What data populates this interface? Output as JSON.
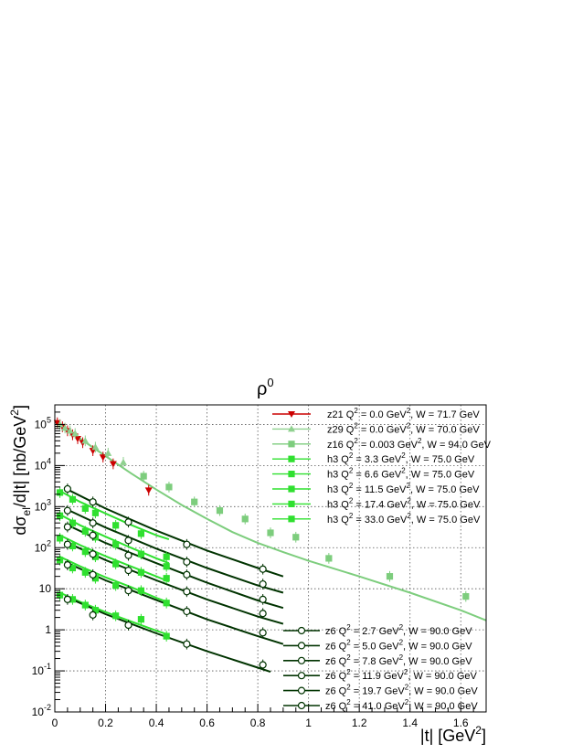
{
  "chart_data": {
    "type": "scatter",
    "title": "ρ0",
    "title_base": "ρ",
    "title_sup": "0",
    "xlabel": "|t| [GeV2]",
    "xlabel_parts": {
      "pre": "|t| [GeV",
      "sup": "2",
      "post": "]"
    },
    "ylabel": "dσel/d|t| [nb/GeV2]",
    "ylabel_parts": {
      "a": "dσ",
      "sub": "el",
      "b": "/d|t|  [nb/GeV",
      "sup": "2",
      "c": "]"
    },
    "xlim": [
      0,
      1.7
    ],
    "ylim": [
      0.01,
      300000
    ],
    "yscale": "log",
    "grid": true,
    "x_ticks": [
      {
        "v": 0,
        "label": "0"
      },
      {
        "v": 0.2,
        "label": "0.2"
      },
      {
        "v": 0.4,
        "label": "0.4"
      },
      {
        "v": 0.6,
        "label": "0.6"
      },
      {
        "v": 0.8,
        "label": "0.8"
      },
      {
        "v": 1,
        "label": "1"
      },
      {
        "v": 1.2,
        "label": "1.2"
      },
      {
        "v": 1.4,
        "label": "1.4"
      },
      {
        "v": 1.6,
        "label": "1.6"
      }
    ],
    "y_ticks": [
      {
        "v": 0.01,
        "base": "10",
        "exp": "-2"
      },
      {
        "v": 0.1,
        "base": "10",
        "exp": "-1"
      },
      {
        "v": 1,
        "base": "1",
        "exp": ""
      },
      {
        "v": 10,
        "base": "10",
        "exp": ""
      },
      {
        "v": 100,
        "base": "10",
        "exp": "2"
      },
      {
        "v": 1000,
        "base": "10",
        "exp": "3"
      },
      {
        "v": 10000,
        "base": "10",
        "exp": "4"
      },
      {
        "v": 100000,
        "base": "10",
        "exp": "5"
      }
    ],
    "series": [
      {
        "name": "z21 Q2 = 0.0 GeV2, W = 71.7 GeV",
        "leg_pre": "z21 Q",
        "leg_mid": " =    0.0 GeV",
        "leg_post": ", W = 71.7 GeV",
        "legend_group": "top",
        "color": "#cc0000",
        "marker": "triangle-down",
        "curve": [],
        "points": [
          [
            0.01,
            110000
          ],
          [
            0.03,
            88000
          ],
          [
            0.05,
            70000
          ],
          [
            0.07,
            56000
          ],
          [
            0.09,
            45000
          ],
          [
            0.11,
            36000
          ],
          [
            0.15,
            23000
          ],
          [
            0.19,
            16000
          ],
          [
            0.23,
            11000
          ],
          [
            0.37,
            2500
          ]
        ]
      },
      {
        "name": "z29 Q2 = 0.0 GeV2, W = 70.0 GeV",
        "leg_pre": "z29 Q",
        "leg_mid": " =    0.0 GeV",
        "leg_post": ", W = 70.0 GeV",
        "legend_group": "top",
        "color": "#8fd18f",
        "marker": "triangle-up",
        "curve": [],
        "points": [
          [
            0.02,
            100000
          ],
          [
            0.04,
            82000
          ],
          [
            0.06,
            70000
          ],
          [
            0.08,
            60000
          ],
          [
            0.12,
            40000
          ],
          [
            0.16,
            28000
          ],
          [
            0.21,
            20000
          ],
          [
            0.27,
            12000
          ]
        ]
      },
      {
        "name": "z16 Q2 = 0.003 GeV2, W = 94.0 GeV",
        "leg_pre": "z16 Q",
        "leg_mid": " = 0.003 GeV",
        "leg_post": ", W = 94.0 GeV",
        "legend_group": "top",
        "color": "#7dcd7d",
        "marker": "square",
        "curve": [
          [
            0,
            120000
          ],
          [
            0.1,
            45000
          ],
          [
            0.2,
            17000
          ],
          [
            0.3,
            6500
          ],
          [
            0.4,
            2600
          ],
          [
            0.5,
            1100
          ],
          [
            0.6,
            500
          ],
          [
            0.7,
            240
          ],
          [
            0.8,
            130
          ],
          [
            0.9,
            78
          ],
          [
            1.0,
            48
          ],
          [
            1.2,
            20
          ],
          [
            1.4,
            8
          ],
          [
            1.6,
            3
          ],
          [
            1.7,
            1.7
          ]
        ],
        "points": [
          [
            0.35,
            5500
          ],
          [
            0.45,
            3000
          ],
          [
            0.55,
            1300
          ],
          [
            0.65,
            800
          ],
          [
            0.75,
            500
          ],
          [
            0.85,
            230
          ],
          [
            0.95,
            180
          ],
          [
            1.08,
            55
          ],
          [
            1.32,
            20
          ],
          [
            1.62,
            6.5
          ]
        ]
      },
      {
        "name": "h3 Q2 = 3.3 GeV2, W = 75.0 GeV",
        "leg_pre": "h3 Q",
        "leg_mid": " =   3.3 GeV",
        "leg_post": ", W = 75.0 GeV",
        "legend_group": "top",
        "color": "#2fe02f",
        "marker": "square",
        "curve": [
          [
            0.02,
            2400
          ],
          [
            0.1,
            1300
          ],
          [
            0.2,
            680
          ],
          [
            0.3,
            360
          ],
          [
            0.4,
            200
          ],
          [
            0.45,
            160
          ]
        ],
        "points": [
          [
            0.02,
            2200
          ],
          [
            0.07,
            1500
          ],
          [
            0.12,
            900
          ],
          [
            0.16,
            700
          ],
          [
            0.24,
            350
          ],
          [
            0.34,
            220
          ],
          [
            0.44,
            60
          ]
        ]
      },
      {
        "name": "h3 Q2 = 6.6 GeV2, W = 75.0 GeV",
        "leg_pre": "h3 Q",
        "leg_mid": " =   6.6 GeV",
        "leg_post": ", W = 75.0 GeV",
        "legend_group": "top",
        "color": "#2fe02f",
        "marker": "square",
        "curve": [
          [
            0.02,
            640
          ],
          [
            0.1,
            350
          ],
          [
            0.2,
            185
          ],
          [
            0.3,
            100
          ],
          [
            0.4,
            55
          ],
          [
            0.45,
            42
          ]
        ],
        "points": [
          [
            0.02,
            600
          ],
          [
            0.07,
            400
          ],
          [
            0.12,
            250
          ],
          [
            0.16,
            180
          ],
          [
            0.24,
            120
          ],
          [
            0.34,
            70
          ],
          [
            0.44,
            35
          ]
        ]
      },
      {
        "name": "h3 Q2 = 11.5 GeV2, W = 75.0 GeV",
        "leg_pre": "h3 Q",
        "leg_mid": " = 11.5 GeV",
        "leg_post": ", W = 75.0 GeV",
        "legend_group": "top",
        "color": "#2fe02f",
        "marker": "square",
        "curve": [
          [
            0.02,
            200
          ],
          [
            0.1,
            115
          ],
          [
            0.2,
            62
          ],
          [
            0.3,
            35
          ],
          [
            0.4,
            20
          ],
          [
            0.45,
            15
          ]
        ],
        "points": [
          [
            0.02,
            170
          ],
          [
            0.07,
            110
          ],
          [
            0.12,
            80
          ],
          [
            0.16,
            60
          ],
          [
            0.24,
            40
          ],
          [
            0.34,
            25
          ],
          [
            0.44,
            18
          ]
        ]
      },
      {
        "name": "h3 Q2 = 17.4 GeV2, W = 75.0 GeV",
        "leg_pre": "h3 Q",
        "leg_mid": " = 17.4 GeV",
        "leg_post": ", W = 75.0 GeV",
        "legend_group": "top",
        "color": "#2fe02f",
        "marker": "square",
        "curve": [
          [
            0.02,
            60
          ],
          [
            0.1,
            35
          ],
          [
            0.2,
            19
          ],
          [
            0.3,
            11
          ],
          [
            0.4,
            6
          ],
          [
            0.45,
            4.6
          ]
        ],
        "points": [
          [
            0.02,
            50
          ],
          [
            0.07,
            32
          ],
          [
            0.12,
            25
          ],
          [
            0.16,
            18
          ],
          [
            0.24,
            12
          ],
          [
            0.34,
            9
          ],
          [
            0.44,
            4.5
          ]
        ]
      },
      {
        "name": "h3 Q2 = 33.0 GeV2, W = 75.0 GeV",
        "leg_pre": "h3 Q",
        "leg_mid": " = 33.0 GeV",
        "leg_post": ", W = 75.0 GeV",
        "legend_group": "top",
        "color": "#2fe02f",
        "marker": "square",
        "curve": [
          [
            0.02,
            8
          ],
          [
            0.1,
            4.8
          ],
          [
            0.2,
            2.7
          ],
          [
            0.3,
            1.6
          ],
          [
            0.4,
            0.95
          ],
          [
            0.45,
            0.75
          ]
        ],
        "points": [
          [
            0.02,
            7
          ],
          [
            0.07,
            5.5
          ],
          [
            0.12,
            4
          ],
          [
            0.16,
            3
          ],
          [
            0.24,
            2.2
          ],
          [
            0.34,
            1.8
          ],
          [
            0.44,
            0.7
          ]
        ]
      },
      {
        "name": "z6 Q2 = 2.7 GeV2, W = 90.0 GeV",
        "leg_pre": "z6 Q",
        "leg_mid": " =   2.7 GeV",
        "leg_post": ", W = 90.0 GeV",
        "legend_group": "bottom",
        "color": "#003300",
        "marker": "circle-open",
        "curve": [
          [
            0.04,
            2800
          ],
          [
            0.2,
            900
          ],
          [
            0.4,
            260
          ],
          [
            0.6,
            85
          ],
          [
            0.8,
            32
          ],
          [
            0.9,
            20
          ]
        ],
        "points": [
          [
            0.05,
            2700
          ],
          [
            0.15,
            1300
          ],
          [
            0.29,
            420
          ],
          [
            0.52,
            120
          ],
          [
            0.82,
            30
          ]
        ]
      },
      {
        "name": "z6 Q2 = 5.0 GeV2, W = 90.0 GeV",
        "leg_pre": "z6 Q",
        "leg_mid": " =   5.0 GeV",
        "leg_post": ", W = 90.0 GeV",
        "legend_group": "bottom",
        "color": "#003300",
        "marker": "circle-open",
        "curve": [
          [
            0.04,
            900
          ],
          [
            0.2,
            310
          ],
          [
            0.4,
            95
          ],
          [
            0.6,
            32
          ],
          [
            0.8,
            12
          ],
          [
            0.9,
            8
          ]
        ],
        "points": [
          [
            0.05,
            800
          ],
          [
            0.15,
            400
          ],
          [
            0.29,
            150
          ],
          [
            0.52,
            45
          ],
          [
            0.82,
            13
          ]
        ]
      },
      {
        "name": "z6 Q2 = 7.8 GeV2, W = 90.0 GeV",
        "leg_pre": "z6 Q",
        "leg_mid": " =   7.8 GeV",
        "leg_post": ", W = 90.0 GeV",
        "legend_group": "bottom",
        "color": "#003300",
        "marker": "circle-open",
        "curve": [
          [
            0.04,
            380
          ],
          [
            0.2,
            130
          ],
          [
            0.4,
            42
          ],
          [
            0.6,
            14
          ],
          [
            0.8,
            5.2
          ],
          [
            0.9,
            3.4
          ]
        ],
        "points": [
          [
            0.05,
            320
          ],
          [
            0.15,
            200
          ],
          [
            0.29,
            65
          ],
          [
            0.52,
            22
          ],
          [
            0.82,
            5.5
          ]
        ]
      },
      {
        "name": "z6 Q2 = 11.9 GeV2, W = 90.0 GeV",
        "leg_pre": "z6 Q",
        "leg_mid": " = 11.9 GeV",
        "leg_post": ", W = 90.0 GeV",
        "legend_group": "bottom",
        "color": "#003300",
        "marker": "circle-open",
        "curve": [
          [
            0.04,
            140
          ],
          [
            0.2,
            50
          ],
          [
            0.4,
            16
          ],
          [
            0.6,
            5.5
          ],
          [
            0.8,
            2.1
          ],
          [
            0.9,
            1.4
          ]
        ],
        "points": [
          [
            0.05,
            120
          ],
          [
            0.15,
            70
          ],
          [
            0.29,
            28
          ],
          [
            0.52,
            8.5
          ],
          [
            0.82,
            2.5
          ]
        ]
      },
      {
        "name": "z6 Q2 = 19.7 GeV2, W = 90.0 GeV",
        "leg_pre": "z6 Q",
        "leg_mid": " = 19.7 GeV",
        "leg_post": ", W = 90.0 GeV",
        "legend_group": "bottom",
        "color": "#003300",
        "marker": "circle-open",
        "curve": [
          [
            0.04,
            45
          ],
          [
            0.2,
            16
          ],
          [
            0.4,
            5.3
          ],
          [
            0.6,
            1.8
          ],
          [
            0.8,
            0.7
          ],
          [
            0.9,
            0.45
          ]
        ],
        "points": [
          [
            0.05,
            38
          ],
          [
            0.15,
            22
          ],
          [
            0.29,
            9
          ],
          [
            0.52,
            2.8
          ],
          [
            0.82,
            0.85
          ]
        ]
      },
      {
        "name": "z6 Q2 = 41.0 GeV2, W = 90.0 GeV",
        "leg_pre": "z6 Q",
        "leg_mid": " = 41.0 GeV",
        "leg_post": ", W = 90.0 GeV",
        "legend_group": "bottom",
        "color": "#003300",
        "marker": "circle-open",
        "curve": [
          [
            0.04,
            6.5
          ],
          [
            0.2,
            2.4
          ],
          [
            0.4,
            0.82
          ],
          [
            0.6,
            0.3
          ],
          [
            0.8,
            0.12
          ],
          [
            0.85,
            0.095
          ]
        ],
        "points": [
          [
            0.05,
            5.5
          ],
          [
            0.15,
            2.3
          ],
          [
            0.29,
            1.3
          ],
          [
            0.52,
            0.45
          ],
          [
            0.82,
            0.14
          ]
        ]
      }
    ]
  }
}
